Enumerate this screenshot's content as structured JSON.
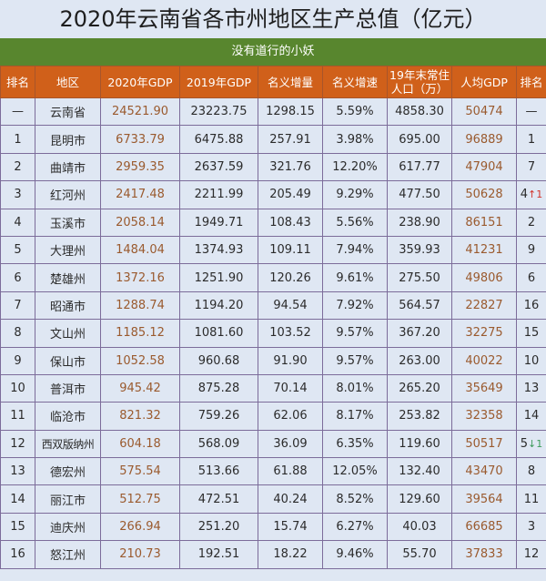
{
  "title": "2020年云南省各市州地区生产总值（亿元）",
  "subtitle": "没有道行的小妖",
  "colors": {
    "header_bg": "#d0601a",
    "subtitle_bg": "#58862e",
    "cell_bg": "#dfe7f3",
    "highlight_text": "#9a5a2e",
    "arrow_up": "#d2342c",
    "arrow_down": "#3c9a5a"
  },
  "columns": [
    "排名",
    "地区",
    "2020年GDP",
    "2019年GDP",
    "名义增量",
    "名义增速",
    "19年末常住人口（万）",
    "人均GDP",
    "排名"
  ],
  "column_labels": {
    "rank": "排名",
    "region": "地区",
    "gdp2020": "2020年GDP",
    "gdp2019": "2019年GDP",
    "increase": "名义增量",
    "growth": "名义增速",
    "pop_line1": "19年末常住",
    "pop_line2": "人口（万）",
    "per_capita": "人均GDP",
    "per_capita_rank": "排名"
  },
  "rows": [
    {
      "rank": "—",
      "region": "云南省",
      "gdp2020": "24521.90",
      "gdp2019": "23223.75",
      "increase": "1298.15",
      "growth": "5.59%",
      "population": "4858.30",
      "per_capita": "50474",
      "pc_rank": "—",
      "pc_change": "",
      "pc_dir": ""
    },
    {
      "rank": "1",
      "region": "昆明市",
      "gdp2020": "6733.79",
      "gdp2019": "6475.88",
      "increase": "257.91",
      "growth": "3.98%",
      "population": "695.00",
      "per_capita": "96889",
      "pc_rank": "1",
      "pc_change": "",
      "pc_dir": ""
    },
    {
      "rank": "2",
      "region": "曲靖市",
      "gdp2020": "2959.35",
      "gdp2019": "2637.59",
      "increase": "321.76",
      "growth": "12.20%",
      "population": "617.77",
      "per_capita": "47904",
      "pc_rank": "7",
      "pc_change": "",
      "pc_dir": ""
    },
    {
      "rank": "3",
      "region": "红河州",
      "gdp2020": "2417.48",
      "gdp2019": "2211.99",
      "increase": "205.49",
      "growth": "9.29%",
      "population": "477.50",
      "per_capita": "50628",
      "pc_rank": "4",
      "pc_change": "↑1",
      "pc_dir": "up"
    },
    {
      "rank": "4",
      "region": "玉溪市",
      "gdp2020": "2058.14",
      "gdp2019": "1949.71",
      "increase": "108.43",
      "growth": "5.56%",
      "population": "238.90",
      "per_capita": "86151",
      "pc_rank": "2",
      "pc_change": "",
      "pc_dir": ""
    },
    {
      "rank": "5",
      "region": "大理州",
      "gdp2020": "1484.04",
      "gdp2019": "1374.93",
      "increase": "109.11",
      "growth": "7.94%",
      "population": "359.93",
      "per_capita": "41231",
      "pc_rank": "9",
      "pc_change": "",
      "pc_dir": ""
    },
    {
      "rank": "6",
      "region": "楚雄州",
      "gdp2020": "1372.16",
      "gdp2019": "1251.90",
      "increase": "120.26",
      "growth": "9.61%",
      "population": "275.50",
      "per_capita": "49806",
      "pc_rank": "6",
      "pc_change": "",
      "pc_dir": ""
    },
    {
      "rank": "7",
      "region": "昭通市",
      "gdp2020": "1288.74",
      "gdp2019": "1194.20",
      "increase": "94.54",
      "growth": "7.92%",
      "population": "564.57",
      "per_capita": "22827",
      "pc_rank": "16",
      "pc_change": "",
      "pc_dir": ""
    },
    {
      "rank": "8",
      "region": "文山州",
      "gdp2020": "1185.12",
      "gdp2019": "1081.60",
      "increase": "103.52",
      "growth": "9.57%",
      "population": "367.20",
      "per_capita": "32275",
      "pc_rank": "15",
      "pc_change": "",
      "pc_dir": ""
    },
    {
      "rank": "9",
      "region": "保山市",
      "gdp2020": "1052.58",
      "gdp2019": "960.68",
      "increase": "91.90",
      "growth": "9.57%",
      "population": "263.00",
      "per_capita": "40022",
      "pc_rank": "10",
      "pc_change": "",
      "pc_dir": ""
    },
    {
      "rank": "10",
      "region": "普洱市",
      "gdp2020": "945.42",
      "gdp2019": "875.28",
      "increase": "70.14",
      "growth": "8.01%",
      "population": "265.20",
      "per_capita": "35649",
      "pc_rank": "13",
      "pc_change": "",
      "pc_dir": ""
    },
    {
      "rank": "11",
      "region": "临沧市",
      "gdp2020": "821.32",
      "gdp2019": "759.26",
      "increase": "62.06",
      "growth": "8.17%",
      "population": "253.82",
      "per_capita": "32358",
      "pc_rank": "14",
      "pc_change": "",
      "pc_dir": ""
    },
    {
      "rank": "12",
      "region": "西双版纳州",
      "gdp2020": "604.18",
      "gdp2019": "568.09",
      "increase": "36.09",
      "growth": "6.35%",
      "population": "119.60",
      "per_capita": "50517",
      "pc_rank": "5",
      "pc_change": "↓1",
      "pc_dir": "down"
    },
    {
      "rank": "13",
      "region": "德宏州",
      "gdp2020": "575.54",
      "gdp2019": "513.66",
      "increase": "61.88",
      "growth": "12.05%",
      "population": "132.40",
      "per_capita": "43470",
      "pc_rank": "8",
      "pc_change": "",
      "pc_dir": ""
    },
    {
      "rank": "14",
      "region": "丽江市",
      "gdp2020": "512.75",
      "gdp2019": "472.51",
      "increase": "40.24",
      "growth": "8.52%",
      "population": "129.60",
      "per_capita": "39564",
      "pc_rank": "11",
      "pc_change": "",
      "pc_dir": ""
    },
    {
      "rank": "15",
      "region": "迪庆州",
      "gdp2020": "266.94",
      "gdp2019": "251.20",
      "increase": "15.74",
      "growth": "6.27%",
      "population": "40.03",
      "per_capita": "66685",
      "pc_rank": "3",
      "pc_change": "",
      "pc_dir": ""
    },
    {
      "rank": "16",
      "region": "怒江州",
      "gdp2020": "210.73",
      "gdp2019": "192.51",
      "increase": "18.22",
      "growth": "9.46%",
      "population": "55.70",
      "per_capita": "37833",
      "pc_rank": "12",
      "pc_change": "",
      "pc_dir": ""
    }
  ]
}
